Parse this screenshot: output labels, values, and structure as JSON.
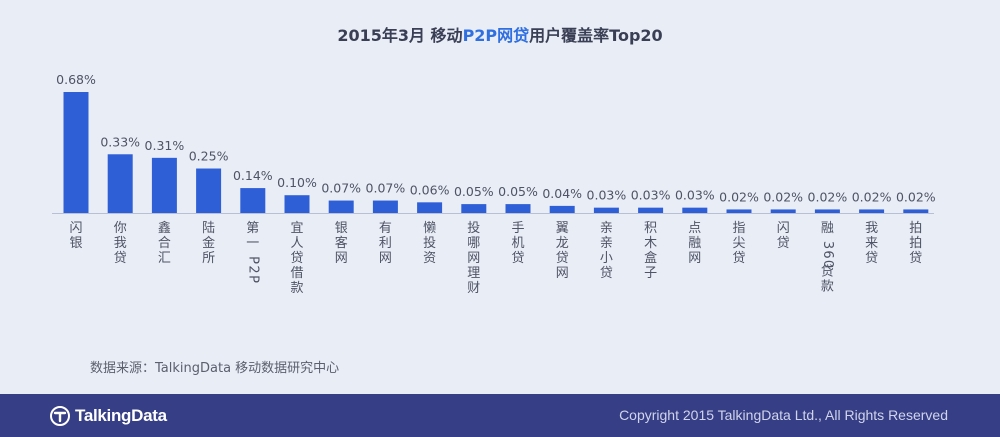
{
  "title": {
    "prefix": "2015年3月 移动",
    "highlight": "P2P网贷",
    "suffix": "用户覆盖率Top20"
  },
  "colors": {
    "bar": "#2f5fd6",
    "highlight": "#2f6fe0",
    "footer": "#363e86",
    "background": "#e9edf6"
  },
  "chart_data": {
    "type": "bar",
    "title": "2015年3月 移动P2P网贷用户覆盖率Top20",
    "categories": [
      "闪银",
      "你我贷",
      "鑫合汇",
      "陆金所",
      "第一P2P",
      "宜人贷借款",
      "银客网",
      "有利网",
      "懒投资",
      "投哪网理财",
      "手机贷",
      "翼龙贷网",
      "亲亲小贷",
      "积木盒子",
      "点融网",
      "指尖贷",
      "闪贷",
      "融360贷款",
      "我来贷",
      "拍拍贷"
    ],
    "values": [
      0.68,
      0.33,
      0.31,
      0.25,
      0.14,
      0.1,
      0.07,
      0.07,
      0.06,
      0.05,
      0.05,
      0.04,
      0.03,
      0.03,
      0.03,
      0.02,
      0.02,
      0.02,
      0.02,
      0.02
    ],
    "value_labels": [
      "0.68%",
      "0.33%",
      "0.31%",
      "0.25%",
      "0.14%",
      "0.10%",
      "0.07%",
      "0.07%",
      "0.06%",
      "0.05%",
      "0.05%",
      "0.04%",
      "0.03%",
      "0.03%",
      "0.03%",
      "0.02%",
      "0.02%",
      "0.02%",
      "0.02%",
      "0.02%"
    ],
    "unit": "%",
    "ylim": [
      0,
      0.68
    ],
    "grid": false,
    "legend": "none"
  },
  "source": "数据来源：TalkingData 移动数据研究中心",
  "footer": {
    "logo_text": "TalkingData",
    "logo_icon": "talkingdata-logo-icon",
    "copyright": "Copyright 2015 TalkingData Ltd., All Rights Reserved"
  }
}
